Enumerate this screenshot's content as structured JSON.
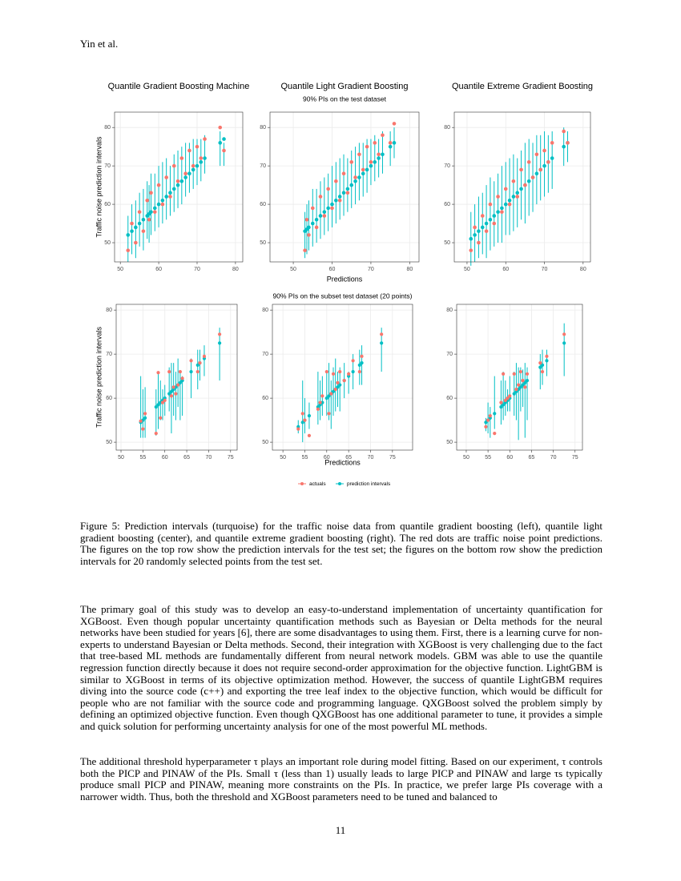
{
  "header": "Yin et al.",
  "figure": {
    "top_subtitle": "90% PIs on the test dataset",
    "bottom_subtitle": "90% PIs on the subset test dataset (20 points)",
    "y_label": "Traffic noise prediction intervals",
    "x_label": "Predictions",
    "legend": [
      {
        "name": "actuals",
        "color": "#F8766D"
      },
      {
        "name": "prediction intervals",
        "color": "#00BFC4"
      }
    ]
  },
  "chart_data": [
    {
      "type": "errorbar",
      "title": "Quantile Gradient Boosting Machine",
      "grid": true,
      "xlim": [
        48.5,
        81.9
      ],
      "ylim": [
        45.0,
        84.0
      ],
      "xticks": [
        50,
        60,
        70,
        80
      ],
      "yticks": [
        50,
        60,
        70,
        80
      ],
      "x": [
        52,
        53,
        54,
        55,
        56,
        57,
        57.5,
        58,
        59,
        60,
        61,
        62,
        63,
        64,
        65,
        66,
        67,
        68,
        69,
        70,
        71,
        72,
        76,
        77
      ],
      "series": [
        {
          "color": "#F8766D",
          "values": [
            48,
            55,
            50,
            58,
            53,
            61,
            56,
            63,
            58,
            65,
            60,
            67,
            62,
            70,
            66,
            72,
            68,
            74,
            70,
            75,
            72,
            77,
            80,
            74
          ]
        },
        {
          "color": "#00BFC4",
          "values": [
            52,
            53,
            54,
            55,
            56,
            57,
            57.5,
            58,
            59,
            60,
            61,
            62,
            63,
            64,
            65,
            66,
            67,
            68,
            69,
            70,
            71,
            72,
            76,
            77
          ],
          "lower": [
            45,
            47,
            46,
            49,
            48,
            51,
            50,
            52,
            53,
            54,
            55,
            56,
            57,
            58,
            59,
            60,
            62,
            63,
            64,
            65,
            66,
            68,
            70,
            70
          ],
          "upper": [
            57,
            60,
            61,
            63,
            64,
            66,
            65,
            68,
            68,
            70,
            71,
            72,
            70,
            73,
            74,
            75,
            76,
            76,
            77,
            77,
            77,
            78,
            79,
            76
          ]
        }
      ]
    },
    {
      "type": "errorbar",
      "title": "Quantile Light Gradient Boosting",
      "grid": true,
      "xlim": [
        44.0,
        82.4
      ],
      "ylim": [
        45.0,
        84.0
      ],
      "xticks": [
        50,
        60,
        70,
        80
      ],
      "yticks": [
        50,
        60,
        70,
        80
      ],
      "x": [
        53,
        53.5,
        54,
        55,
        56,
        57,
        58,
        59,
        60,
        61,
        62,
        63,
        64,
        65,
        66,
        67,
        68,
        69,
        70,
        71,
        72,
        73,
        75,
        76
      ],
      "series": [
        {
          "color": "#F8766D",
          "values": [
            48,
            56,
            52,
            59,
            54,
            62,
            57,
            64,
            59,
            66,
            61,
            68,
            63,
            71,
            67,
            73,
            69,
            75,
            71,
            76,
            73,
            78,
            76,
            81
          ]
        },
        {
          "color": "#00BFC4",
          "values": [
            53,
            53.5,
            54,
            55,
            56,
            57,
            58,
            59,
            60,
            61,
            62,
            63,
            64,
            65,
            66,
            67,
            68,
            69,
            70,
            71,
            72,
            73,
            75,
            76
          ],
          "lower": [
            46,
            47,
            48,
            49,
            50,
            51,
            52,
            53,
            54,
            55,
            56,
            57,
            58,
            59,
            60,
            61,
            62,
            63,
            65,
            66,
            67,
            68,
            70,
            72
          ],
          "upper": [
            58,
            60,
            61,
            64,
            64,
            66,
            67,
            68,
            70,
            71,
            72,
            73,
            72,
            74,
            75,
            76,
            76,
            77,
            77,
            78,
            77,
            79,
            79,
            80
          ]
        }
      ]
    },
    {
      "type": "errorbar",
      "title": "Quantile Extreme Gradient Boosting",
      "grid": true,
      "xlim": [
        46.7,
        81.9
      ],
      "ylim": [
        45.0,
        84.0
      ],
      "xticks": [
        50,
        60,
        70,
        80
      ],
      "yticks": [
        50,
        60,
        70,
        80
      ],
      "x": [
        51,
        52,
        53,
        54,
        55,
        56,
        57,
        58,
        59,
        60,
        61,
        62,
        63,
        64,
        65,
        66,
        67,
        68,
        69,
        70,
        71,
        72,
        75,
        76
      ],
      "series": [
        {
          "color": "#F8766D",
          "values": [
            48,
            54,
            50,
            57,
            53,
            60,
            55,
            62,
            58,
            64,
            60,
            66,
            62,
            69,
            65,
            71,
            67,
            73,
            69,
            74,
            71,
            76,
            79,
            76
          ]
        },
        {
          "color": "#00BFC4",
          "values": [
            51,
            52,
            53,
            54,
            55,
            56,
            57,
            58,
            59,
            60,
            61,
            62,
            63,
            64,
            65,
            66,
            67,
            68,
            69,
            70,
            71,
            72,
            75,
            76
          ],
          "lower": [
            44,
            45,
            46,
            47,
            46,
            48,
            49,
            50,
            50,
            52,
            52,
            53,
            54,
            56,
            55,
            57,
            58,
            60,
            61,
            62,
            63,
            64,
            70,
            71
          ],
          "upper": [
            58,
            60,
            62,
            63,
            65,
            67,
            66,
            68,
            70,
            71,
            72,
            73,
            72,
            74,
            76,
            77,
            76,
            78,
            78,
            79,
            78,
            79,
            80,
            79
          ]
        }
      ]
    },
    {
      "type": "errorbar",
      "grid": true,
      "xlim": [
        48.9,
        76.5
      ],
      "ylim": [
        48.2,
        81.3
      ],
      "xticks": [
        50,
        55,
        60,
        65,
        70,
        75
      ],
      "yticks": [
        50,
        60,
        70,
        80
      ],
      "x": [
        54.5,
        55,
        55.5,
        58,
        58.5,
        59,
        59.5,
        60,
        61,
        61.5,
        62,
        62.5,
        63,
        63.5,
        64,
        66,
        67.5,
        68,
        69,
        72.5
      ],
      "series": [
        {
          "color": "#F8766D",
          "values": [
            54.8,
            53,
            56.5,
            52,
            65.8,
            55.5,
            59,
            59.5,
            66,
            60.5,
            62.5,
            61,
            63,
            66,
            64.5,
            68.5,
            66,
            68,
            69.5,
            74.5
          ]
        },
        {
          "color": "#00BFC4",
          "values": [
            54.5,
            55,
            55.5,
            58,
            58.5,
            59,
            59.5,
            60,
            61,
            61.5,
            62,
            62.5,
            63,
            63.5,
            64,
            66,
            67.5,
            68,
            69,
            72.5
          ],
          "lower": [
            51,
            51,
            51,
            51.5,
            53,
            55,
            55,
            56,
            57,
            52,
            56,
            55,
            58,
            55,
            56,
            60,
            62,
            64,
            65,
            64
          ],
          "upper": [
            65,
            62,
            62.5,
            62,
            66,
            64,
            62,
            63,
            67,
            68,
            68,
            66,
            69,
            66,
            65,
            69,
            71,
            71,
            72,
            76
          ]
        }
      ]
    },
    {
      "type": "errorbar",
      "grid": true,
      "xlim": [
        47.6,
        79.6
      ],
      "ylim": [
        48.2,
        81.3
      ],
      "xticks": [
        50,
        55,
        60,
        65,
        70,
        75
      ],
      "yticks": [
        50,
        60,
        70,
        80
      ],
      "x": [
        53.5,
        54.5,
        55,
        56,
        58,
        58.5,
        59,
        60,
        60.5,
        61,
        61.5,
        62,
        62.5,
        63,
        64,
        65,
        66,
        67.5,
        68,
        72.5
      ],
      "series": [
        {
          "color": "#F8766D",
          "values": [
            53,
            56.5,
            55,
            51.5,
            57.5,
            59,
            60.5,
            66,
            56.5,
            61,
            65.5,
            62,
            63.5,
            66,
            64,
            65.5,
            68.5,
            66,
            69.5,
            74.5
          ]
        },
        {
          "color": "#00BFC4",
          "values": [
            53.5,
            54.5,
            55,
            56,
            58,
            58.5,
            59,
            60,
            60.5,
            61,
            61.5,
            62,
            62.5,
            63,
            64,
            65,
            66,
            67.5,
            68,
            72.5
          ],
          "lower": [
            52,
            50,
            52,
            53,
            54,
            55,
            56,
            56,
            55,
            53,
            56,
            57,
            58,
            57,
            60,
            61,
            62,
            63,
            63,
            66
          ],
          "upper": [
            55,
            64,
            60,
            59,
            66,
            64,
            65,
            66,
            68,
            64,
            67,
            69,
            66,
            67,
            68,
            66,
            70,
            71,
            72,
            76
          ]
        }
      ]
    },
    {
      "type": "errorbar",
      "grid": true,
      "xlim": [
        47.8,
        76.7
      ],
      "ylim": [
        48.2,
        81.3
      ],
      "xticks": [
        50,
        55,
        60,
        65,
        70,
        75
      ],
      "yticks": [
        50,
        60,
        70,
        80
      ],
      "x": [
        54.5,
        55,
        55.5,
        56.5,
        58,
        58.5,
        59,
        59.5,
        60,
        61,
        61.5,
        62,
        62.5,
        63,
        63.5,
        64,
        67,
        67.5,
        68.5,
        72.5
      ],
      "series": [
        {
          "color": "#F8766D",
          "values": [
            53.5,
            55,
            56,
            52,
            59,
            65.5,
            59.5,
            60,
            60.5,
            65.5,
            62,
            63,
            66,
            64,
            62.5,
            65.5,
            68,
            66,
            69.5,
            74.5
          ]
        },
        {
          "color": "#00BFC4",
          "values": [
            54.5,
            55,
            55.5,
            56.5,
            58,
            58.5,
            59,
            59.5,
            60,
            61,
            61.5,
            62,
            62.5,
            63,
            63.5,
            64,
            67,
            67.5,
            68.5,
            72.5
          ],
          "lower": [
            52.5,
            52,
            51,
            53,
            54,
            55,
            56,
            57,
            57,
            56,
            55,
            50.5,
            57,
            58,
            51,
            55,
            62,
            63,
            65,
            65
          ],
          "upper": [
            55.5,
            59,
            58,
            65,
            64,
            66,
            64,
            62,
            65,
            66,
            68,
            67,
            67,
            66.5,
            68,
            67,
            70,
            71,
            71,
            77
          ]
        }
      ]
    }
  ],
  "caption": "Figure 5: Prediction intervals (turquoise) for the traffic noise data from quantile gradient boosting (left), quantile light gradient boosting (center), and quantile extreme gradient boosting (right). The red dots are traffic noise point predictions. The figures on the top row show the prediction intervals for the test set; the figures on the bottom row show the prediction intervals for 20 randomly selected points from the test set.",
  "body": [
    "The primary goal of this study was to develop an easy-to-understand implementation of uncertainty quantification for XGBoost. Even though popular uncertainty quantification methods such as Bayesian or Delta methods for the neural networks have been studied for years [6], there are some disadvantages to using them. First, there is a learning curve for non-experts to understand Bayesian or Delta methods. Second, their integration with XGBoost is very challenging due to the fact that tree-based ML methods are fundamentally different from neural network models. GBM was able to use the quantile regression function directly because it does not require second-order approximation for the objective function. LightGBM is similar to XGBoost in terms of its objective optimization method. However, the success of quantile LightGBM requires diving into the source code (c++) and exporting the tree leaf index to the objective function, which would be difficult for people who are not familiar with the source code and programming language. QXGBoost solved the problem simply by defining an optimized objective function. Even though QXGBoost has one additional parameter to tune, it provides a simple and quick solution for performing uncertainty analysis for one of the most powerful ML methods.",
    "The additional threshold hyperparameter τ plays an important role during model fitting. Based on our experiment, τ controls both the PICP and PINAW of the PIs. Small τ (less than 1) usually leads to large PICP and PINAW and large τs typically produce small PICP and PINAW, meaning more constraints on the PIs. In practice, we prefer large PIs coverage with a narrower width. Thus, both the threshold and XGBoost parameters need to be tuned and balanced to"
  ],
  "page_number": "11"
}
